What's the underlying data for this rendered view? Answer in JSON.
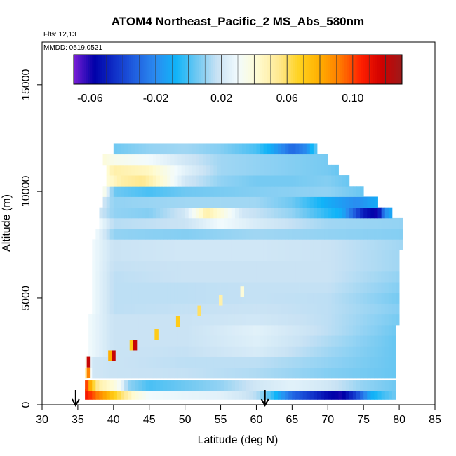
{
  "chart_data": {
    "type": "heatmap",
    "title": "ATOM4 Northeast_Pacific_2 MS_Abs_580nm",
    "flights_label": "Flts: 12,13",
    "dates_label": "MMDD: 0519,0521",
    "xlabel": "Latitude (deg N)",
    "ylabel": "Altitude (m)",
    "xlim": [
      30,
      85
    ],
    "ylim": [
      0,
      17000
    ],
    "x_ticks": [
      "30",
      "35",
      "40",
      "45",
      "50",
      "55",
      "60",
      "65",
      "70",
      "75",
      "80",
      "85"
    ],
    "y_ticks": [
      "0",
      "5000",
      "10000",
      "15000"
    ],
    "colorbar": {
      "range": [
        -0.07,
        0.13
      ],
      "tick_values": [
        -0.06,
        -0.02,
        0.02,
        0.06,
        0.1
      ],
      "tick_labels": [
        "-0.06",
        "-0.02",
        "0.02",
        "0.06",
        "0.10"
      ],
      "colors": [
        "#7a1fd6",
        "#0000a8",
        "#1030c8",
        "#2060e0",
        "#2a8cf0",
        "#10b4f8",
        "#6fc8f2",
        "#c8e2f4",
        "#f2fbfd",
        "#fffbd0",
        "#ffe890",
        "#ffd21e",
        "#ffae00",
        "#ff7a00",
        "#ff2000",
        "#d00000",
        "#9c1a1a"
      ]
    },
    "arrows_at_latitude": [
      34.7,
      61.2
    ],
    "profile_rows": [
      {
        "z": 500,
        "lat0": 36.0,
        "lat1": 79.5,
        "values": [
          [
            36,
            0.11
          ],
          [
            37,
            0.1
          ],
          [
            38,
            0.09
          ],
          [
            39,
            0.08
          ],
          [
            40,
            0.07
          ],
          [
            41,
            0.06
          ],
          [
            42,
            0.05
          ],
          [
            43,
            0.04
          ],
          [
            45,
            0.03
          ],
          [
            50,
            0.027
          ],
          [
            55,
            0.025
          ],
          [
            58,
            0.02
          ],
          [
            60,
            0.015
          ],
          [
            62,
            0.0
          ],
          [
            65,
            -0.03
          ],
          [
            68,
            -0.045
          ],
          [
            70,
            -0.055
          ],
          [
            72,
            -0.06
          ],
          [
            74,
            -0.04
          ],
          [
            76,
            -0.01
          ],
          [
            78,
            0.0
          ],
          [
            79.5,
            0.005
          ]
        ]
      },
      {
        "z": 900,
        "lat0": 36.0,
        "lat1": 79.5,
        "values": [
          [
            36,
            0.11
          ],
          [
            37,
            0.07
          ],
          [
            38,
            0.05
          ],
          [
            40,
            0.04
          ],
          [
            41,
            0.03
          ],
          [
            42,
            0.01
          ],
          [
            45,
            0.0
          ],
          [
            50,
            0.005
          ],
          [
            55,
            0.01
          ],
          [
            60,
            0.02
          ],
          [
            65,
            0.025
          ],
          [
            70,
            0.02
          ],
          [
            75,
            0.01
          ],
          [
            79.5,
            0.005
          ]
        ]
      },
      {
        "z": 1500,
        "lat0": 36.0,
        "lat1": 79.5,
        "values": [
          [
            36,
            0.06
          ],
          [
            37,
            0.02
          ],
          [
            40,
            0.018
          ],
          [
            50,
            0.017
          ],
          [
            60,
            0.014
          ],
          [
            70,
            0.008
          ],
          [
            79.5,
            0.004
          ]
        ]
      },
      {
        "z": 2000,
        "lat0": 36.0,
        "lat1": 79.5,
        "values": [
          [
            36,
            0.04
          ],
          [
            37,
            0.02
          ],
          [
            40,
            0.018
          ],
          [
            50,
            0.016
          ],
          [
            60,
            0.016
          ],
          [
            70,
            0.01
          ],
          [
            79.5,
            0.004
          ]
        ]
      },
      {
        "z": 2500,
        "lat0": 36.5,
        "lat1": 79.5,
        "values": [
          [
            36.5,
            0.03
          ],
          [
            40,
            0.018
          ],
          [
            50,
            0.017
          ],
          [
            60,
            0.022
          ],
          [
            70,
            0.012
          ],
          [
            79.5,
            0.004
          ]
        ]
      },
      {
        "z": 3000,
        "lat0": 36.5,
        "lat1": 79.5,
        "values": [
          [
            36.5,
            0.03
          ],
          [
            40,
            0.018
          ],
          [
            50,
            0.018
          ],
          [
            60,
            0.024
          ],
          [
            70,
            0.014
          ],
          [
            79.5,
            0.004
          ]
        ]
      },
      {
        "z": 3500,
        "lat0": 36.5,
        "lat1": 79.5,
        "values": [
          [
            36.5,
            0.03
          ],
          [
            40,
            0.018
          ],
          [
            50,
            0.018
          ],
          [
            60,
            0.025
          ],
          [
            70,
            0.016
          ],
          [
            79.5,
            0.005
          ]
        ]
      },
      {
        "z": 4000,
        "lat0": 36.5,
        "lat1": 80.0,
        "values": [
          [
            36.5,
            0.03
          ],
          [
            40,
            0.018
          ],
          [
            50,
            0.018
          ],
          [
            60,
            0.02
          ],
          [
            70,
            0.016
          ],
          [
            80,
            0.006
          ]
        ]
      },
      {
        "z": 4500,
        "lat0": 37.0,
        "lat1": 80.0,
        "values": [
          [
            37,
            0.03
          ],
          [
            40,
            0.016
          ],
          [
            50,
            0.017
          ],
          [
            60,
            0.018
          ],
          [
            70,
            0.016
          ],
          [
            80,
            0.008
          ]
        ]
      },
      {
        "z": 5000,
        "lat0": 37.0,
        "lat1": 80.0,
        "values": [
          [
            37,
            0.03
          ],
          [
            40,
            0.016
          ],
          [
            50,
            0.016
          ],
          [
            60,
            0.017
          ],
          [
            70,
            0.016
          ],
          [
            80,
            0.006
          ]
        ]
      },
      {
        "z": 5500,
        "lat0": 37.0,
        "lat1": 80.0,
        "values": [
          [
            37,
            0.03
          ],
          [
            40,
            0.016
          ],
          [
            50,
            0.016
          ],
          [
            60,
            0.017
          ],
          [
            70,
            0.017
          ],
          [
            80,
            0.008
          ]
        ]
      },
      {
        "z": 6000,
        "lat0": 37.0,
        "lat1": 80.0,
        "values": [
          [
            37,
            0.03
          ],
          [
            40,
            0.016
          ],
          [
            50,
            0.018
          ],
          [
            60,
            0.018
          ],
          [
            70,
            0.018
          ],
          [
            80,
            0.01
          ]
        ]
      },
      {
        "z": 6500,
        "lat0": 37.0,
        "lat1": 80.0,
        "values": [
          [
            37,
            0.03
          ],
          [
            40,
            0.017
          ],
          [
            50,
            0.018
          ],
          [
            60,
            0.018
          ],
          [
            70,
            0.018
          ],
          [
            80,
            0.012
          ]
        ]
      },
      {
        "z": 7000,
        "lat0": 37.0,
        "lat1": 80.0,
        "values": [
          [
            37,
            0.03
          ],
          [
            40,
            0.018
          ],
          [
            50,
            0.02
          ],
          [
            60,
            0.02
          ],
          [
            70,
            0.018
          ],
          [
            80,
            0.012
          ]
        ]
      },
      {
        "z": 7500,
        "lat0": 37.0,
        "lat1": 80.5,
        "values": [
          [
            37,
            0.03
          ],
          [
            40,
            0.018
          ],
          [
            50,
            0.02
          ],
          [
            60,
            0.02
          ],
          [
            70,
            0.018
          ],
          [
            80.5,
            0.012
          ]
        ]
      },
      {
        "z": 8000,
        "lat0": 37.5,
        "lat1": 80.5,
        "values": [
          [
            37.5,
            0.03
          ],
          [
            40,
            0.01
          ],
          [
            50,
            0.008
          ],
          [
            60,
            0.012
          ],
          [
            70,
            0.01
          ],
          [
            80.5,
            0.008
          ]
        ]
      },
      {
        "z": 8500,
        "lat0": 38.0,
        "lat1": 80.5,
        "values": [
          [
            38,
            0.03
          ],
          [
            40,
            0.015
          ],
          [
            50,
            0.018
          ],
          [
            55,
            0.03
          ],
          [
            60,
            0.022
          ],
          [
            70,
            0.012
          ],
          [
            80.5,
            0.01
          ]
        ]
      },
      {
        "z": 9000,
        "lat0": 38.0,
        "lat1": 79.0,
        "values": [
          [
            38,
            0.02
          ],
          [
            40,
            0.01
          ],
          [
            45,
            0.008
          ],
          [
            50,
            0.02
          ],
          [
            53,
            0.05
          ],
          [
            55,
            0.04
          ],
          [
            58,
            0.02
          ],
          [
            65,
            0.01
          ],
          [
            72,
            -0.01
          ],
          [
            75,
            -0.05
          ],
          [
            77,
            -0.06
          ],
          [
            78,
            -0.02
          ],
          [
            79,
            -0.01
          ]
        ]
      },
      {
        "z": 9500,
        "lat0": 38.5,
        "lat1": 77.0,
        "values": [
          [
            38.5,
            0.02
          ],
          [
            40,
            0.01
          ],
          [
            50,
            0.012
          ],
          [
            60,
            0.012
          ],
          [
            65,
            0.005
          ],
          [
            70,
            -0.01
          ],
          [
            74,
            -0.02
          ],
          [
            77,
            -0.01
          ]
        ]
      },
      {
        "z": 10000,
        "lat0": 38.5,
        "lat1": 75.0,
        "values": [
          [
            38.5,
            0.04
          ],
          [
            40,
            0.005
          ],
          [
            45,
            0.0
          ],
          [
            50,
            0.005
          ],
          [
            60,
            0.008
          ],
          [
            70,
            0.01
          ],
          [
            75,
            0.004
          ]
        ]
      },
      {
        "z": 10500,
        "lat0": 39.0,
        "lat1": 73.0,
        "values": [
          [
            39,
            0.04
          ],
          [
            41,
            0.05
          ],
          [
            44,
            0.055
          ],
          [
            47,
            0.04
          ],
          [
            50,
            0.02
          ],
          [
            55,
            0.01
          ],
          [
            60,
            0.006
          ],
          [
            65,
            0.006
          ],
          [
            70,
            0.008
          ],
          [
            73,
            0.004
          ]
        ]
      },
      {
        "z": 11000,
        "lat0": 39.0,
        "lat1": 71.5,
        "values": [
          [
            39,
            0.04
          ],
          [
            40,
            0.05
          ],
          [
            45,
            0.045
          ],
          [
            50,
            0.025
          ],
          [
            55,
            0.012
          ],
          [
            60,
            0.01
          ],
          [
            65,
            0.008
          ],
          [
            70,
            0.006
          ],
          [
            71.5,
            0.004
          ]
        ]
      },
      {
        "z": 11500,
        "lat0": 38.5,
        "lat1": 70.0,
        "values": [
          [
            38.5,
            0.04
          ],
          [
            40,
            0.035
          ],
          [
            45,
            0.03
          ],
          [
            50,
            0.02
          ],
          [
            55,
            0.012
          ],
          [
            60,
            0.01
          ],
          [
            65,
            0.008
          ],
          [
            70,
            0.006
          ]
        ]
      },
      {
        "z": 12000,
        "lat0": 40.0,
        "lat1": 68.5,
        "values": [
          [
            40,
            0.005
          ],
          [
            45,
            0.01
          ],
          [
            50,
            0.012
          ],
          [
            55,
            0.008
          ],
          [
            60,
            0.0
          ],
          [
            62,
            -0.01
          ],
          [
            65,
            -0.03
          ],
          [
            67,
            -0.02
          ],
          [
            68.5,
            0.005
          ]
        ]
      }
    ],
    "highlight_cells": [
      {
        "lat": 36.5,
        "z": 2000,
        "value": 0.12
      },
      {
        "lat": 36.5,
        "z": 1500,
        "value": 0.09
      },
      {
        "lat": 39.5,
        "z": 2300,
        "value": 0.08
      },
      {
        "lat": 40.0,
        "z": 2300,
        "value": 0.12
      },
      {
        "lat": 42.5,
        "z": 2800,
        "value": 0.07
      },
      {
        "lat": 43.0,
        "z": 2800,
        "value": 0.12
      },
      {
        "lat": 46.0,
        "z": 3300,
        "value": 0.07
      },
      {
        "lat": 49.0,
        "z": 3900,
        "value": 0.07
      },
      {
        "lat": 52.0,
        "z": 4400,
        "value": 0.06
      },
      {
        "lat": 55.0,
        "z": 4900,
        "value": 0.05
      },
      {
        "lat": 58.0,
        "z": 5300,
        "value": 0.04
      }
    ]
  }
}
